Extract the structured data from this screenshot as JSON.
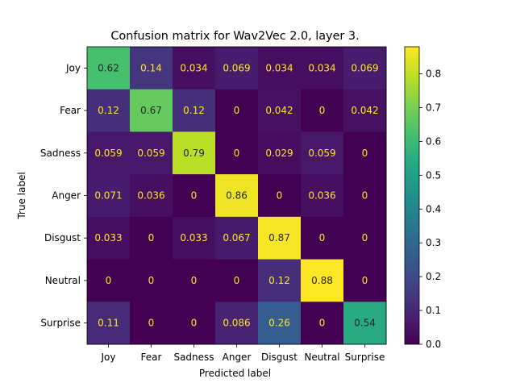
{
  "chart_data": {
    "type": "heatmap",
    "title": "Confusion matrix for Wav2Vec 2.0, layer 3.",
    "xlabel": "Predicted label",
    "ylabel": "True label",
    "x_categories": [
      "Joy",
      "Fear",
      "Sadness",
      "Anger",
      "Disgust",
      "Neutral",
      "Surprise"
    ],
    "y_categories": [
      "Joy",
      "Fear",
      "Sadness",
      "Anger",
      "Disgust",
      "Neutral",
      "Surprise"
    ],
    "values": [
      [
        0.62,
        0.14,
        0.034,
        0.069,
        0.034,
        0.034,
        0.069
      ],
      [
        0.12,
        0.67,
        0.12,
        0,
        0.042,
        0,
        0.042
      ],
      [
        0.059,
        0.059,
        0.79,
        0,
        0.029,
        0.059,
        0
      ],
      [
        0.071,
        0.036,
        0,
        0.86,
        0,
        0.036,
        0
      ],
      [
        0.033,
        0,
        0.033,
        0.067,
        0.87,
        0,
        0
      ],
      [
        0,
        0,
        0,
        0,
        0.12,
        0.88,
        0
      ],
      [
        0.11,
        0,
        0,
        0.086,
        0.26,
        0,
        0.54
      ]
    ],
    "labels": [
      [
        "0.62",
        "0.14",
        "0.034",
        "0.069",
        "0.034",
        "0.034",
        "0.069"
      ],
      [
        "0.12",
        "0.67",
        "0.12",
        "0",
        "0.042",
        "0",
        "0.042"
      ],
      [
        "0.059",
        "0.059",
        "0.79",
        "0",
        "0.029",
        "0.059",
        "0"
      ],
      [
        "0.071",
        "0.036",
        "0",
        "0.86",
        "0",
        "0.036",
        "0"
      ],
      [
        "0.033",
        "0",
        "0.033",
        "0.067",
        "0.87",
        "0",
        "0"
      ],
      [
        "0",
        "0",
        "0",
        "0",
        "0.12",
        "0.88",
        "0"
      ],
      [
        "0.11",
        "0",
        "0",
        "0.086",
        "0.26",
        "0",
        "0.54"
      ]
    ],
    "colormap": "viridis",
    "colorbar": {
      "range": [
        0,
        0.88
      ],
      "ticks": [
        0.0,
        0.1,
        0.2,
        0.3,
        0.4,
        0.5,
        0.6,
        0.7,
        0.8
      ],
      "tick_labels": [
        "0.0",
        "0.1",
        "0.2",
        "0.3",
        "0.4",
        "0.5",
        "0.6",
        "0.7",
        "0.8"
      ]
    },
    "grid": false
  }
}
